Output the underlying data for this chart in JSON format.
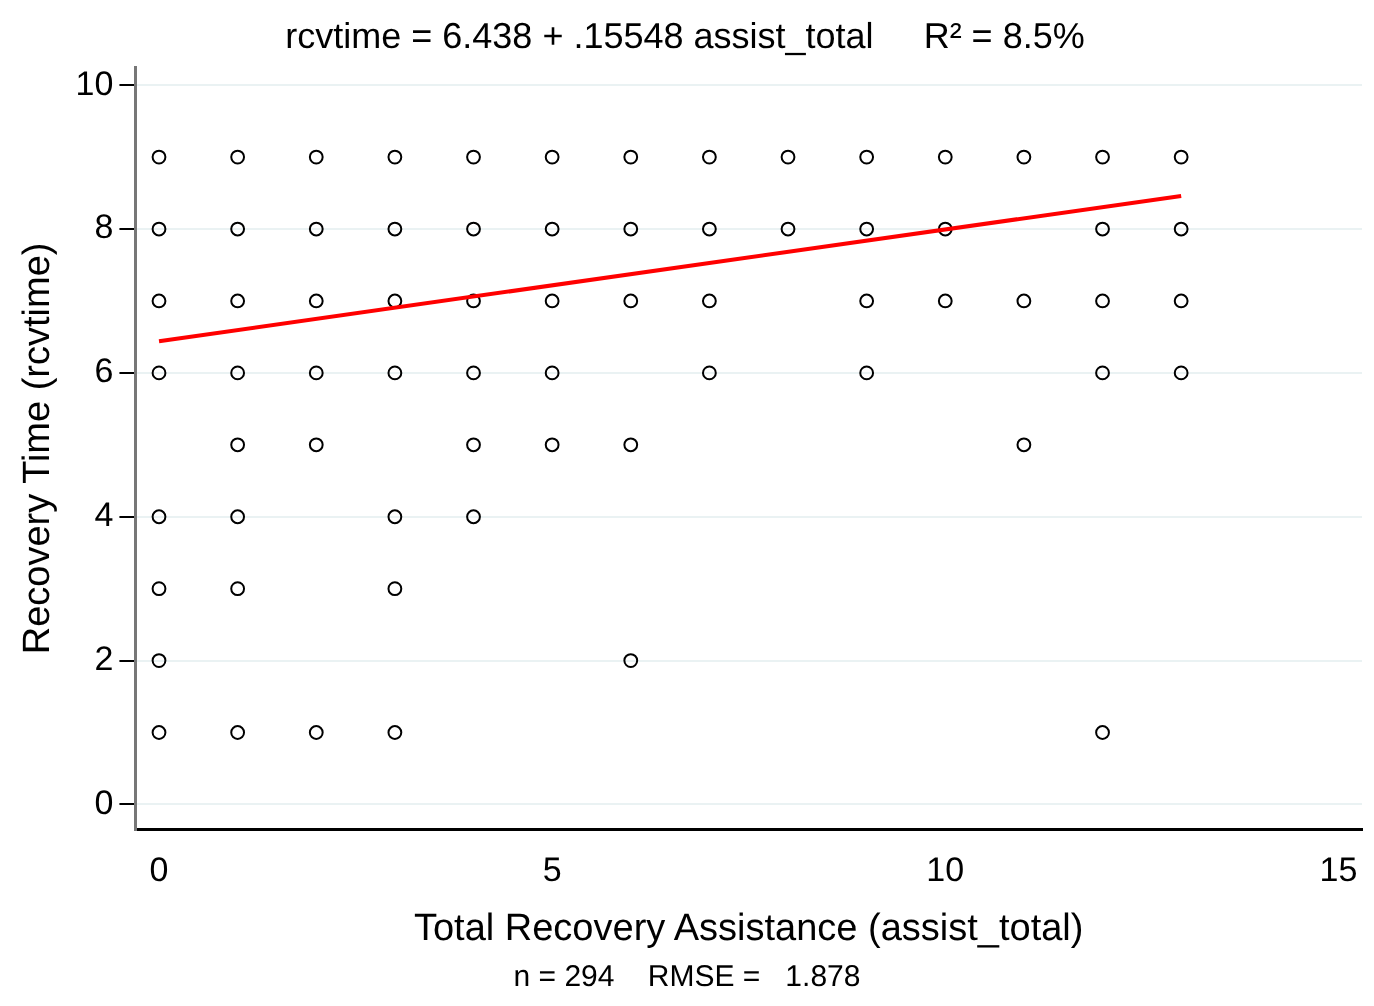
{
  "chart_data": {
    "type": "scatter",
    "title": "rcvtime = 6.438 + .15548 assist_total     R² = 8.5%",
    "xlabel": "Total Recovery Assistance (assist_total)",
    "ylabel": "Recovery Time (rcvtime)",
    "annotations": [
      "n = 294    RMSE =   1.878"
    ],
    "series": [
      {
        "type": "scatter",
        "color": "#000000",
        "marker": "circle",
        "x": [
          0,
          0,
          0,
          0,
          0,
          0,
          0,
          0,
          1,
          1,
          1,
          1,
          1,
          1,
          1,
          1,
          2,
          2,
          2,
          2,
          2,
          2,
          3,
          3,
          3,
          3,
          3,
          3,
          3,
          4,
          4,
          4,
          4,
          4,
          4,
          5,
          5,
          5,
          5,
          5,
          6,
          6,
          6,
          6,
          6,
          7,
          7,
          7,
          7,
          8,
          8,
          9,
          9,
          9,
          9,
          10,
          10,
          10,
          11,
          11,
          11,
          12,
          12,
          12,
          12,
          12,
          13,
          13,
          13,
          13
        ],
        "values": [
          9,
          8,
          7,
          6,
          4,
          3,
          2,
          1,
          9,
          8,
          7,
          6,
          5,
          4,
          3,
          1,
          9,
          8,
          7,
          6,
          5,
          1,
          9,
          8,
          7,
          6,
          4,
          3,
          1,
          9,
          8,
          7,
          6,
          5,
          4,
          9,
          8,
          7,
          6,
          5,
          9,
          8,
          7,
          5,
          2,
          9,
          8,
          7,
          6,
          9,
          8,
          9,
          8,
          7,
          6,
          9,
          8,
          7,
          9,
          7,
          5,
          9,
          8,
          7,
          6,
          1,
          9,
          8,
          7,
          6
        ]
      },
      {
        "type": "line",
        "color": "#ff0000",
        "marker": "none",
        "x": [
          0,
          13
        ],
        "values": [
          6.44,
          8.46
        ]
      }
    ],
    "xlim": [
      -0.3,
      15.3
    ],
    "xticks": [
      0,
      5,
      10,
      15
    ],
    "ylim": [
      -0.35,
      10.25
    ],
    "yticks": [
      0,
      2,
      4,
      6,
      8,
      10
    ],
    "grid": "y",
    "legend": false
  }
}
